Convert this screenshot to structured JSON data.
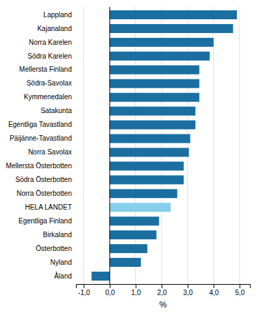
{
  "chart_data": {
    "type": "bar",
    "orientation": "horizontal",
    "categories": [
      "Lappland",
      "Kajanaland",
      "Norra Karelen",
      "Södra Karelen",
      "Mellersta Finland",
      "Södra-Savolax",
      "Kymmenedalen",
      "Satakunta",
      "Egentliga Tavastland",
      "Päijänne-Tavastland",
      "Norra Savolax",
      "Mellersta Österbotten",
      "Södra Österbotten",
      "Norra Österbotten",
      "HELA LANDET",
      "Egentliga Finland",
      "Birkaland",
      "Österbotten",
      "Nyland",
      "Åland"
    ],
    "values": [
      4.9,
      4.75,
      4.0,
      3.85,
      3.45,
      3.45,
      3.45,
      3.3,
      3.3,
      3.1,
      3.05,
      2.85,
      2.85,
      2.6,
      2.35,
      1.9,
      1.8,
      1.45,
      1.2,
      -0.7
    ],
    "colors": [
      "#1a6fa0",
      "#1a6fa0",
      "#1a6fa0",
      "#1a6fa0",
      "#1a6fa0",
      "#1a6fa0",
      "#1a6fa0",
      "#1a6fa0",
      "#1a6fa0",
      "#1a6fa0",
      "#1a6fa0",
      "#1a6fa0",
      "#1a6fa0",
      "#1a6fa0",
      "#87ceeb",
      "#1a6fa0",
      "#1a6fa0",
      "#1a6fa0",
      "#1a6fa0",
      "#1a6fa0"
    ],
    "xlabel": "%",
    "xlim": [
      -1.3,
      5.4
    ],
    "xticks": [
      {
        "value": -1.0,
        "label": "-1,0"
      },
      {
        "value": 0.0,
        "label": "0,0"
      },
      {
        "value": 1.0,
        "label": "1,0"
      },
      {
        "value": 2.0,
        "label": "2,0"
      },
      {
        "value": 3.0,
        "label": "3,0"
      },
      {
        "value": 4.0,
        "label": "4,0"
      },
      {
        "value": 5.0,
        "label": "5,0"
      }
    ],
    "grid": true
  }
}
